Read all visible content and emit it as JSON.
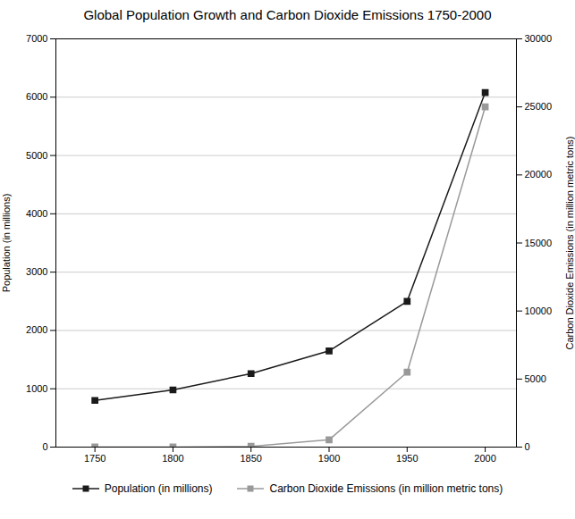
{
  "chart_data": {
    "type": "line",
    "title": "Global Population Growth and Carbon Dioxide Emissions 1750-2000",
    "x": [
      1750,
      1800,
      1850,
      1900,
      1950,
      2000
    ],
    "xlim": [
      1725,
      2020
    ],
    "xticks": [
      1750,
      1800,
      1850,
      1900,
      1950,
      2000
    ],
    "ylabel": "Population (in millions)",
    "y2label": "Carbon Dioxide Emissions (in million metric tons)",
    "ylim": [
      0,
      7000
    ],
    "yticks": [
      0,
      1000,
      2000,
      3000,
      4000,
      5000,
      6000,
      7000
    ],
    "y2lim": [
      0,
      30000
    ],
    "y2ticks": [
      0,
      5000,
      10000,
      15000,
      20000,
      25000,
      30000
    ],
    "series": [
      {
        "name": "Population (in millions)",
        "color": "#1a1a1a",
        "values": [
          800,
          980,
          1260,
          1650,
          2500,
          6080
        ],
        "axis": "y",
        "marker": "square",
        "line_style": "solid"
      },
      {
        "name": "Carbon Dioxide Emissions (in million metric tons)",
        "color": "#999999",
        "values": [
          3,
          8,
          54,
          534,
          5500,
          25000
        ],
        "axis": "y2",
        "marker": "square",
        "line_style": "solid"
      }
    ],
    "grid": true,
    "legend": "bottom"
  }
}
